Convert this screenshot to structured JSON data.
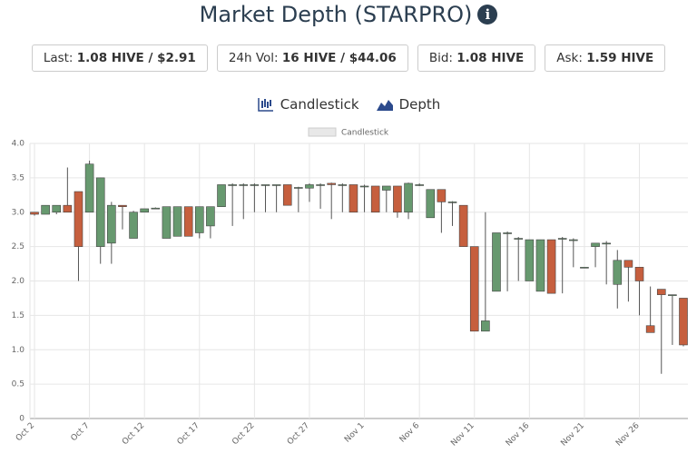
{
  "header": {
    "title": "Market Depth (STARPRO)",
    "info_icon": "i"
  },
  "stats": [
    {
      "label": "Last:",
      "value": "1.08 HIVE / $2.91"
    },
    {
      "label": "24h Vol:",
      "value": "16 HIVE / $44.06"
    },
    {
      "label": "Bid:",
      "value": "1.08 HIVE"
    },
    {
      "label": "Ask:",
      "value": "1.59 HIVE"
    }
  ],
  "tabs": [
    "Candlestick",
    "Depth"
  ],
  "chart_data": {
    "type": "candlestick",
    "legend": "Candlestick",
    "up_color": "#67996f",
    "down_color": "#c65f3e",
    "grid": true,
    "categories": [
      "Oct 2",
      null,
      null,
      null,
      null,
      "Oct 7",
      null,
      null,
      null,
      null,
      "Oct 12",
      null,
      null,
      null,
      null,
      "Oct 17",
      null,
      null,
      null,
      null,
      "Oct 22",
      null,
      null,
      null,
      null,
      "Oct 27",
      null,
      null,
      null,
      null,
      "Nov 1",
      null,
      null,
      null,
      null,
      "Nov 6",
      null,
      null,
      null,
      null,
      "Nov 11",
      null,
      null,
      null,
      null,
      "Nov 16",
      null,
      null,
      null,
      null,
      "Nov 21",
      null,
      null,
      null,
      null,
      "Nov 26",
      null,
      null,
      null,
      null
    ],
    "open": [
      3.0,
      2.97,
      3.0,
      3.1,
      3.3,
      3.0,
      2.5,
      2.55,
      3.1,
      2.62,
      3.0,
      3.05,
      2.62,
      2.65,
      3.08,
      2.7,
      2.8,
      3.08,
      3.4,
      3.4,
      3.4,
      3.4,
      3.4,
      3.4,
      3.35,
      3.35,
      3.4,
      3.42,
      3.4,
      3.4,
      3.38,
      3.38,
      3.32,
      3.38,
      3.0,
      3.4,
      2.92,
      3.33,
      3.15,
      3.1,
      2.5,
      1.27,
      1.85,
      2.7,
      2.62,
      2.0,
      1.85,
      2.6,
      2.62,
      2.6,
      2.2,
      2.5,
      2.55,
      1.95,
      2.3,
      2.2,
      1.35,
      1.88,
      1.8,
      1.75
    ],
    "high": [
      3.0,
      3.1,
      3.1,
      3.65,
      3.3,
      3.75,
      3.5,
      3.15,
      3.1,
      3.02,
      3.05,
      3.07,
      3.08,
      3.08,
      3.08,
      3.08,
      3.08,
      3.4,
      3.42,
      3.42,
      3.42,
      3.4,
      3.4,
      3.4,
      3.37,
      3.42,
      3.42,
      3.43,
      3.42,
      3.4,
      3.4,
      3.38,
      3.38,
      3.38,
      3.43,
      3.42,
      3.33,
      3.33,
      3.16,
      3.1,
      2.5,
      3.0,
      2.7,
      2.72,
      2.64,
      2.6,
      2.6,
      2.6,
      2.64,
      2.62,
      2.2,
      2.55,
      2.58,
      2.45,
      2.3,
      2.2,
      1.92,
      1.88,
      1.8,
      1.75
    ],
    "low": [
      2.95,
      2.97,
      2.97,
      3.0,
      2.0,
      3.0,
      2.25,
      2.25,
      2.75,
      2.62,
      3.0,
      3.05,
      2.62,
      2.65,
      2.65,
      2.62,
      2.62,
      3.08,
      2.8,
      2.9,
      3.0,
      3.0,
      3.0,
      3.1,
      3.0,
      3.15,
      3.05,
      2.9,
      3.0,
      3.0,
      3.0,
      3.0,
      3.0,
      2.92,
      2.9,
      3.38,
      2.92,
      2.7,
      2.8,
      2.5,
      1.27,
      1.27,
      1.85,
      1.85,
      2.0,
      2.0,
      1.85,
      1.82,
      1.82,
      2.2,
      2.2,
      2.2,
      1.95,
      1.6,
      1.7,
      1.5,
      1.25,
      0.65,
      1.07,
      1.05
    ],
    "close": [
      2.97,
      3.1,
      3.1,
      3.0,
      2.5,
      3.7,
      3.5,
      3.1,
      3.08,
      3.0,
      3.05,
      3.06,
      3.08,
      3.08,
      2.65,
      3.08,
      3.08,
      3.4,
      3.4,
      3.4,
      3.4,
      3.4,
      3.4,
      3.1,
      3.36,
      3.4,
      3.4,
      3.4,
      3.4,
      3.0,
      3.38,
      3.0,
      3.38,
      3.0,
      3.42,
      3.4,
      3.33,
      3.15,
      3.15,
      2.5,
      1.27,
      1.42,
      2.7,
      2.7,
      2.62,
      2.6,
      2.6,
      1.82,
      2.62,
      2.6,
      2.2,
      2.55,
      2.55,
      2.3,
      2.2,
      2.0,
      1.25,
      1.8,
      1.8,
      1.07
    ],
    "ylim": [
      0,
      4
    ],
    "yticks": [
      0,
      0.5,
      {
        "value": 1,
        "label": "1.0"
      },
      1.5,
      {
        "value": 2,
        "label": "2.0"
      },
      2.5,
      {
        "value": 3,
        "label": "3.0"
      },
      3.5,
      {
        "value": 4,
        "label": "4.0"
      }
    ]
  }
}
